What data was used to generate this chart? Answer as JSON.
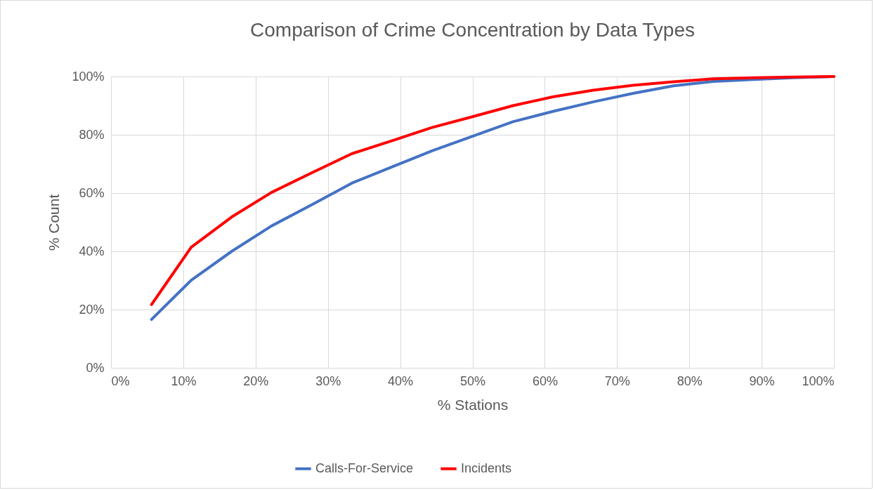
{
  "chart_data": {
    "type": "line",
    "title": "Comparison of Crime Concentration by Data Types",
    "xlabel": "% Stations",
    "ylabel": "% Count",
    "x": [
      5.6,
      11.1,
      16.7,
      22.2,
      27.8,
      33.3,
      38.9,
      44.4,
      50,
      55.6,
      61.1,
      66.7,
      72.2,
      77.8,
      83.3,
      88.9,
      94.4,
      100
    ],
    "series": [
      {
        "name": "Calls-For-Service",
        "color": "#4472c4",
        "values": [
          16.6,
          30.1,
          40,
          48.7,
          56,
          63.4,
          69,
          74.5,
          79.5,
          84.5,
          88,
          91.3,
          94.2,
          96.8,
          98.3,
          99,
          99.6,
          100
        ]
      },
      {
        "name": "Incidents",
        "color": "#ff0000",
        "values": [
          21.7,
          41.4,
          51.8,
          60.2,
          67,
          73.5,
          78,
          82.5,
          86.2,
          90,
          93,
          95.3,
          97,
          98.2,
          99.2,
          99.6,
          99.8,
          100
        ]
      }
    ],
    "xlim": [
      0,
      100
    ],
    "xticks": [
      {
        "value": 0,
        "label": "0%"
      },
      {
        "value": 10,
        "label": "10%"
      },
      {
        "value": 20,
        "label": "20%"
      },
      {
        "value": 30,
        "label": "30%"
      },
      {
        "value": 40,
        "label": "40%"
      },
      {
        "value": 50,
        "label": "50%"
      },
      {
        "value": 60,
        "label": "60%"
      },
      {
        "value": 70,
        "label": "70%"
      },
      {
        "value": 80,
        "label": "80%"
      },
      {
        "value": 90,
        "label": "90%"
      },
      {
        "value": 100,
        "label": "100%"
      }
    ],
    "ylim": [
      0,
      100
    ],
    "yticks": [
      {
        "value": 0,
        "label": "0%"
      },
      {
        "value": 20,
        "label": "20%"
      },
      {
        "value": 40,
        "label": "40%"
      },
      {
        "value": 60,
        "label": "60%"
      },
      {
        "value": 80,
        "label": "80%"
      },
      {
        "value": 100,
        "label": "100%"
      }
    ],
    "grid": true,
    "legend": "bottom",
    "marker": "none",
    "line_style": "solid"
  }
}
